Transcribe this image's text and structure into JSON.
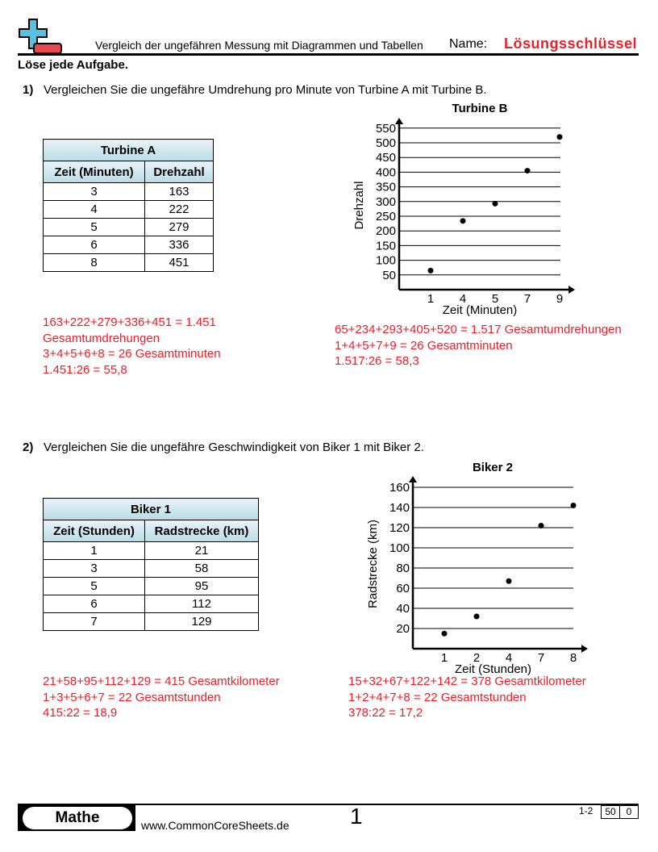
{
  "header": {
    "title": "Vergleich der ungefähren Messung mit Diagrammen und Tabellen",
    "name_label": "Name:",
    "answer_key": "Lösungsschlüssel"
  },
  "instructions": "Löse jede Aufgabe.",
  "problems": [
    {
      "number": "1)",
      "question": "Vergleichen Sie die ungefähre Umdrehung pro Minute von Turbine A mit Turbine B.",
      "table": {
        "title": "Turbine A",
        "headers": [
          "Zeit (Minuten)",
          "Drehzahl"
        ],
        "rows": [
          [
            "3",
            "163"
          ],
          [
            "4",
            "222"
          ],
          [
            "5",
            "279"
          ],
          [
            "6",
            "336"
          ],
          [
            "8",
            "451"
          ]
        ]
      },
      "answer_left": [
        "163+222+279+336+451 = 1.451",
        "Gesamtumdrehungen",
        "3+4+5+6+8 = 26 Gesamtminuten",
        "1.451:26 = 55,8"
      ],
      "answer_right": [
        "65+234+293+405+520 = 1.517 Gesamtumdrehungen",
        "1+4+5+7+9 = 26 Gesamtminuten",
        "1.517:26 = 58,3"
      ]
    },
    {
      "number": "2)",
      "question": "Vergleichen Sie die ungefähre Geschwindigkeit von Biker 1 mit Biker 2.",
      "table": {
        "title": "Biker 1",
        "headers": [
          "Zeit (Stunden)",
          "Radstrecke (km)"
        ],
        "rows": [
          [
            "1",
            "21"
          ],
          [
            "3",
            "58"
          ],
          [
            "5",
            "95"
          ],
          [
            "6",
            "112"
          ],
          [
            "7",
            "129"
          ]
        ]
      },
      "answer_left": [
        "21+58+95+112+129 = 415 Gesamtkilometer",
        "1+3+5+6+7 = 22 Gesamtstunden",
        "415:22 = 18,9"
      ],
      "answer_right": [
        "15+32+67+122+142 = 378 Gesamtkilometer",
        "1+2+4+7+8 = 22 Gesamtstunden",
        "378:22 = 17,2"
      ]
    }
  ],
  "chart_data": [
    {
      "type": "scatter",
      "title": "Turbine B",
      "xlabel": "Zeit (Minuten)",
      "ylabel": "Drehzahl",
      "categories": [
        "1",
        "4",
        "5",
        "7",
        "9"
      ],
      "values": [
        65,
        234,
        293,
        405,
        520
      ],
      "yticks": [
        50,
        100,
        150,
        200,
        250,
        300,
        350,
        400,
        450,
        500,
        550
      ],
      "ylim": [
        0,
        550
      ],
      "grid": true
    },
    {
      "type": "scatter",
      "title": "Biker 2",
      "xlabel": "Zeit (Stunden)",
      "ylabel": "Radstrecke (km)",
      "categories": [
        "1",
        "2",
        "4",
        "7",
        "8"
      ],
      "values": [
        15,
        32,
        67,
        122,
        142
      ],
      "yticks": [
        20,
        40,
        60,
        80,
        100,
        120,
        140,
        160
      ],
      "ylim": [
        0,
        160
      ],
      "grid": true
    }
  ],
  "footer": {
    "subject": "Mathe",
    "site": "www.CommonCoreSheets.de",
    "page": "1",
    "range": "1-2",
    "score_total": "50",
    "score_value": "0"
  },
  "colors": {
    "answer": "#e8202a",
    "logo_blue": "#5bbfe0",
    "logo_red": "#e8474c"
  }
}
